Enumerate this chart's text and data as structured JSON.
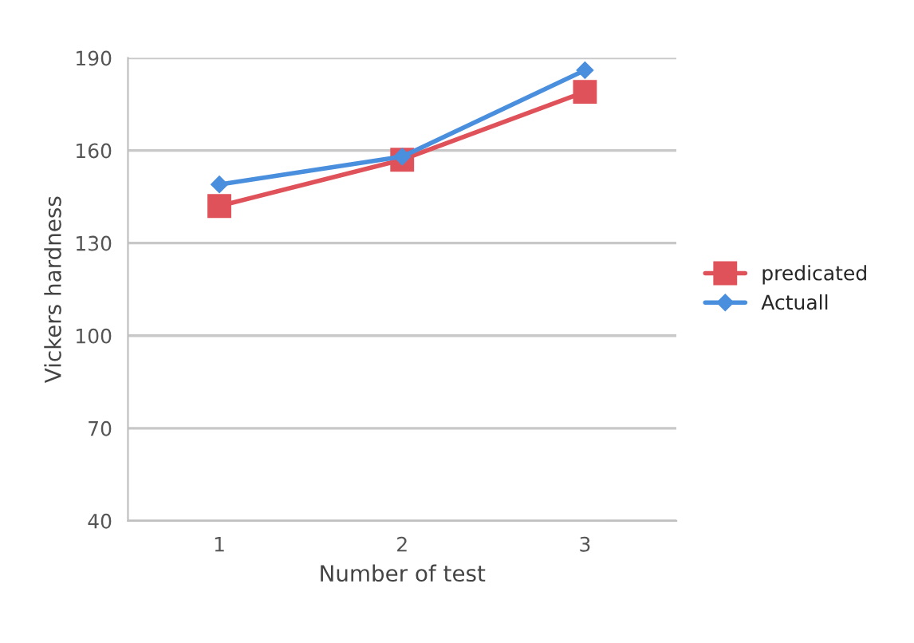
{
  "chart_data": {
    "type": "line",
    "xlabel": "Number of test",
    "ylabel": "Vickers hardness",
    "categories": [
      "1",
      "2",
      "3"
    ],
    "series": [
      {
        "name": "predicated",
        "color": "#e0525a",
        "values": [
          142,
          157,
          179
        ],
        "marker": "square"
      },
      {
        "name": "Actuall",
        "color": "#4a8fdd",
        "values": [
          149,
          158,
          186
        ],
        "marker": "diamond"
      }
    ],
    "ylim": [
      40,
      190
    ],
    "yticks": [
      40,
      70,
      100,
      130,
      160,
      190
    ],
    "grid": "y",
    "legend": "right"
  }
}
